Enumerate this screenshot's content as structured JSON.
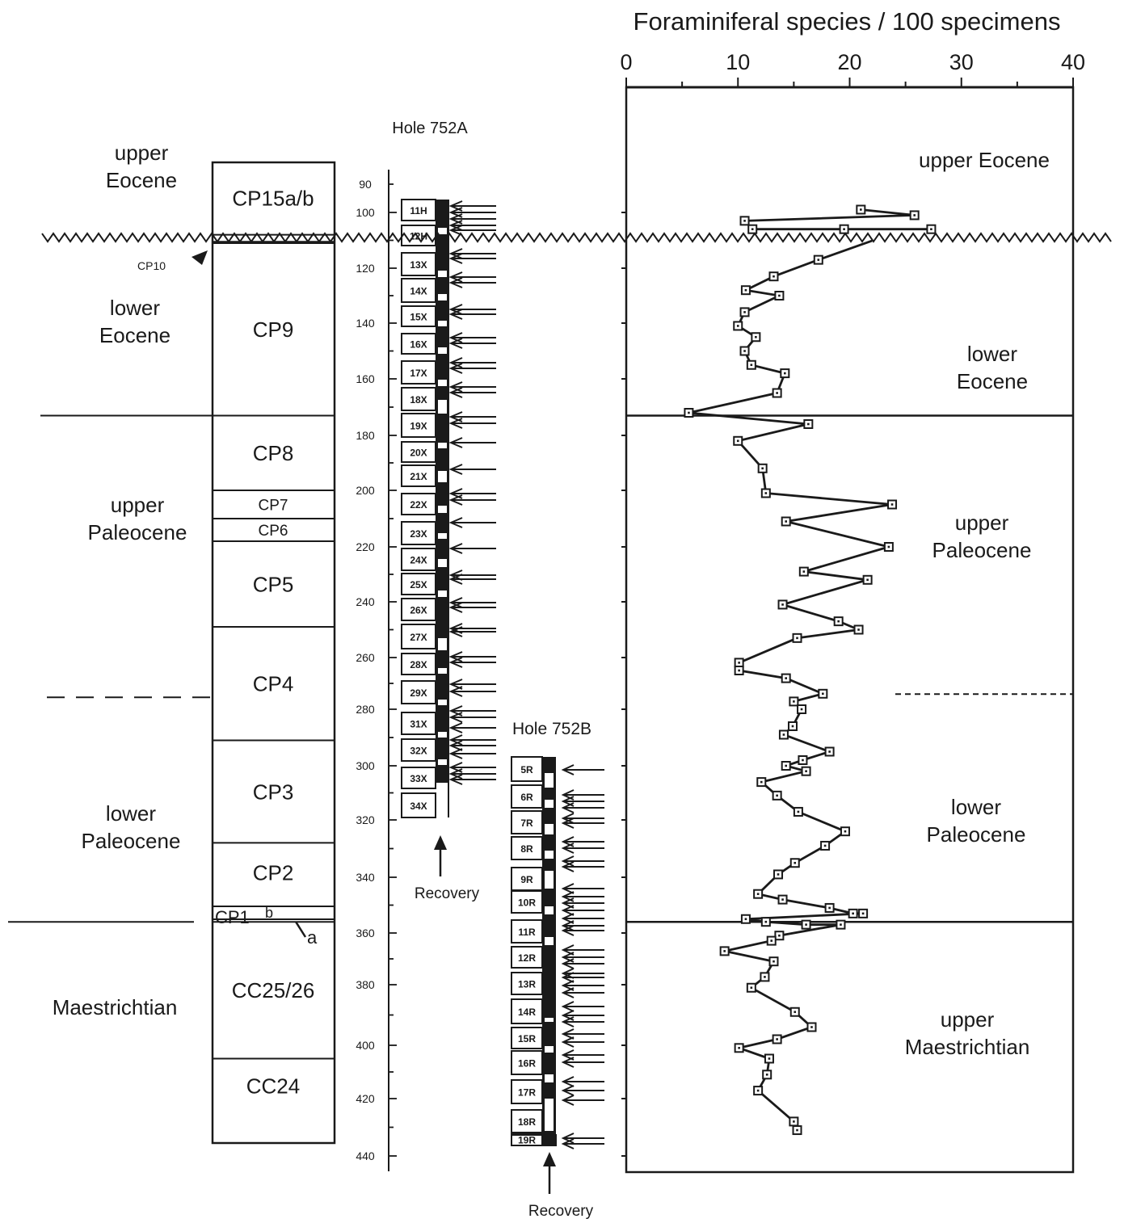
{
  "chart_data": {
    "type": "line",
    "title": "Foraminiferal species / 100 specimens",
    "xlim": [
      0,
      40
    ],
    "x_ticks": [
      "0",
      "10",
      "20",
      "30",
      "40"
    ],
    "ylim": [
      82,
      445
    ],
    "depth_axis_labels": [
      "90",
      "100",
      "120",
      "140",
      "160",
      "180",
      "200",
      "220",
      "240",
      "260",
      "280",
      "300",
      "320",
      "340",
      "360",
      "380",
      "400",
      "420",
      "440"
    ],
    "unconformity_depth": 109,
    "boundaries": [
      {
        "depth": 173,
        "style": "solid"
      },
      {
        "depth": 276,
        "style": "dashed"
      },
      {
        "depth": 356,
        "style": "solid"
      }
    ],
    "series": [
      {
        "marker": "open-square",
        "points": [
          {
            "x": 21.0,
            "y": 99
          },
          {
            "x": 25.8,
            "y": 101
          },
          {
            "x": 10.6,
            "y": 103
          },
          {
            "x": 11.3,
            "y": 106
          },
          {
            "x": 19.5,
            "y": 106
          },
          {
            "x": 27.3,
            "y": 106
          },
          {
            "x": 17.2,
            "y": 117
          },
          {
            "x": 13.2,
            "y": 123
          },
          {
            "x": 10.7,
            "y": 128
          },
          {
            "x": 13.7,
            "y": 130
          },
          {
            "x": 10.6,
            "y": 136
          },
          {
            "x": 10.0,
            "y": 141
          },
          {
            "x": 11.6,
            "y": 145
          },
          {
            "x": 10.6,
            "y": 150
          },
          {
            "x": 11.2,
            "y": 155
          },
          {
            "x": 14.2,
            "y": 158
          },
          {
            "x": 13.5,
            "y": 165
          },
          {
            "x": 5.6,
            "y": 172
          },
          {
            "x": 16.3,
            "y": 176
          },
          {
            "x": 10.0,
            "y": 182
          },
          {
            "x": 12.2,
            "y": 192
          },
          {
            "x": 12.5,
            "y": 201
          },
          {
            "x": 23.8,
            "y": 205
          },
          {
            "x": 14.3,
            "y": 211
          },
          {
            "x": 23.5,
            "y": 220
          },
          {
            "x": 15.9,
            "y": 229
          },
          {
            "x": 21.6,
            "y": 232
          },
          {
            "x": 14.0,
            "y": 241
          },
          {
            "x": 19.0,
            "y": 247
          },
          {
            "x": 20.8,
            "y": 250
          },
          {
            "x": 15.3,
            "y": 253
          },
          {
            "x": 10.1,
            "y": 262
          },
          {
            "x": 10.1,
            "y": 265
          },
          {
            "x": 14.3,
            "y": 268
          },
          {
            "x": 17.6,
            "y": 274
          },
          {
            "x": 15.0,
            "y": 277
          },
          {
            "x": 15.7,
            "y": 280
          },
          {
            "x": 14.9,
            "y": 286
          },
          {
            "x": 14.1,
            "y": 289
          },
          {
            "x": 18.2,
            "y": 295
          },
          {
            "x": 15.8,
            "y": 298
          },
          {
            "x": 14.3,
            "y": 300
          },
          {
            "x": 16.1,
            "y": 302
          },
          {
            "x": 12.1,
            "y": 306
          },
          {
            "x": 13.5,
            "y": 311
          },
          {
            "x": 15.4,
            "y": 317
          },
          {
            "x": 19.6,
            "y": 324
          },
          {
            "x": 17.8,
            "y": 329
          },
          {
            "x": 15.1,
            "y": 335
          },
          {
            "x": 13.6,
            "y": 339
          },
          {
            "x": 11.8,
            "y": 346
          },
          {
            "x": 14.0,
            "y": 348
          },
          {
            "x": 18.2,
            "y": 351
          },
          {
            "x": 20.3,
            "y": 353
          },
          {
            "x": 21.2,
            "y": 353
          },
          {
            "x": 10.7,
            "y": 355
          },
          {
            "x": 12.5,
            "y": 356
          },
          {
            "x": 16.1,
            "y": 357
          },
          {
            "x": 19.2,
            "y": 357
          },
          {
            "x": 13.7,
            "y": 361
          },
          {
            "x": 13.0,
            "y": 363
          },
          {
            "x": 8.8,
            "y": 367
          },
          {
            "x": 13.2,
            "y": 371
          },
          {
            "x": 12.4,
            "y": 377
          },
          {
            "x": 11.2,
            "y": 381
          },
          {
            "x": 15.1,
            "y": 389
          },
          {
            "x": 16.6,
            "y": 394
          },
          {
            "x": 13.5,
            "y": 398
          },
          {
            "x": 10.1,
            "y": 401
          },
          {
            "x": 12.8,
            "y": 405
          },
          {
            "x": 12.6,
            "y": 411
          },
          {
            "x": 11.8,
            "y": 417
          },
          {
            "x": 15.0,
            "y": 428
          },
          {
            "x": 15.3,
            "y": 431
          }
        ]
      }
    ],
    "interval_labels": [
      {
        "lines": [
          "upper Eocene"
        ]
      },
      {
        "lines": [
          "lower",
          "Eocene"
        ]
      },
      {
        "lines": [
          "upper",
          "Paleocene"
        ]
      },
      {
        "lines": [
          "lower",
          "Paleocene"
        ]
      },
      {
        "lines": [
          "upper",
          "Maestrichtian"
        ]
      }
    ]
  },
  "stage_labels": [
    {
      "lines": [
        "upper",
        "Eocene"
      ]
    },
    {
      "lines": [
        "lower",
        "Eocene"
      ]
    },
    {
      "lines": [
        "upper",
        "Paleocene"
      ]
    },
    {
      "lines": [
        "lower",
        "Paleocene"
      ]
    },
    {
      "lines": [
        "Maestrichtian"
      ]
    }
  ],
  "nannofossil_zones": [
    {
      "label": "CP15a/b",
      "top": 82,
      "bottom": 108
    },
    {
      "label": "CP9",
      "top": 111,
      "bottom": 173
    },
    {
      "label": "CP8",
      "top": 173,
      "bottom": 200
    },
    {
      "label": "CP7",
      "top": 200,
      "bottom": 210
    },
    {
      "label": "CP6",
      "top": 210,
      "bottom": 218
    },
    {
      "label": "CP5",
      "top": 218,
      "bottom": 249
    },
    {
      "label": "CP4",
      "top": 249,
      "bottom": 291
    },
    {
      "label": "CP3",
      "top": 291,
      "bottom": 328
    },
    {
      "label": "CP2",
      "top": 328,
      "bottom": 349
    },
    {
      "label": "CC25/26",
      "top": 356,
      "bottom": 405
    },
    {
      "label": "CC24",
      "top": 405,
      "bottom": 425
    }
  ],
  "zone_annotations": {
    "cp10": "CP10",
    "cp1": "CP1",
    "cp1b": "b",
    "cp1a": "a"
  },
  "hole_a": {
    "title": "Hole 752A",
    "recovery_label": "Recovery",
    "cores": [
      "11H",
      "12H",
      "13X",
      "14X",
      "15X",
      "16X",
      "17X",
      "18X",
      "19X",
      "20X",
      "21X",
      "22X",
      "23X",
      "24X",
      "25X",
      "26X",
      "27X",
      "28X",
      "29X",
      "31X",
      "32X",
      "33X",
      "34X"
    ]
  },
  "hole_b": {
    "title": "Hole 752B",
    "recovery_label": "Recovery",
    "cores": [
      "5R",
      "6R",
      "7R",
      "8R",
      "9R",
      "10R",
      "11R",
      "12R",
      "13R",
      "14R",
      "15R",
      "16R",
      "17R",
      "18R",
      "19R"
    ]
  }
}
